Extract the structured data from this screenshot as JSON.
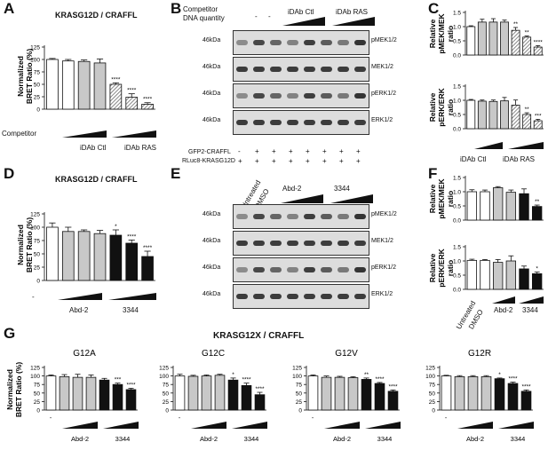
{
  "panels": {
    "A": {
      "letter": "A",
      "title": "KRASG12D / CRAFFL",
      "ylabel": "Normalized BRET Ratio (%)",
      "competitor_label": "Competitor",
      "group_labels": [
        "iDAb Ctl",
        "iDAb RAS"
      ],
      "yticks": [
        "0",
        "25",
        "50",
        "75",
        "100",
        "125"
      ],
      "bars": [
        {
          "value": 100,
          "err": 2,
          "fill": "white"
        },
        {
          "value": 97,
          "err": 3,
          "fill": "white"
        },
        {
          "value": 96,
          "err": 3,
          "fill": "grey"
        },
        {
          "value": 93,
          "err": 8,
          "fill": "grey"
        },
        {
          "value": 50,
          "err": 3,
          "fill": "hatch",
          "sig": "****"
        },
        {
          "value": 24,
          "err": 7,
          "fill": "hatch",
          "sig": "****"
        },
        {
          "value": 10,
          "err": 3,
          "fill": "hatch",
          "sig": "****"
        }
      ]
    },
    "B": {
      "letter": "B",
      "competitor_label": "Competitor",
      "dna_label": "DNA quantity",
      "lane_header": [
        "-",
        "-"
      ],
      "groups": [
        "iDAb Ctl",
        "iDAb RAS"
      ],
      "blots": [
        {
          "kda": "46kDa",
          "label": "pMEK1/2"
        },
        {
          "kda": "46kDa",
          "label": "MEK1/2"
        },
        {
          "kda": "46kDa",
          "label": "pERK1/2"
        },
        {
          "kda": "46kDa",
          "label": "ERK1/2"
        }
      ],
      "row_labels": [
        "GFP2-CRAFFL",
        "RLuc8-KRASG12D"
      ],
      "row_signs": [
        [
          "-",
          "+",
          "+",
          "+",
          "+",
          "+",
          "+",
          "+"
        ],
        [
          "+",
          "+",
          "+",
          "+",
          "+",
          "+",
          "+",
          "+"
        ]
      ]
    },
    "C": {
      "letter": "C",
      "top_ylabel": "Relative pMEK/MEK ratio",
      "bottom_ylabel": "Relative pERK/ERK ratio",
      "yticks": [
        "0.0",
        "0.5",
        "1.0",
        "1.5"
      ],
      "group_labels": [
        "iDAb Ctl",
        "iDAb RAS"
      ],
      "top_bars": [
        {
          "value": 1.0,
          "err": 0.03,
          "fill": "white"
        },
        {
          "value": 1.16,
          "err": 0.1,
          "fill": "grey"
        },
        {
          "value": 1.16,
          "err": 0.12,
          "fill": "grey"
        },
        {
          "value": 1.16,
          "err": 0.07,
          "fill": "grey"
        },
        {
          "value": 0.87,
          "err": 0.1,
          "fill": "hatch",
          "sig": "**"
        },
        {
          "value": 0.63,
          "err": 0.04,
          "fill": "hatch",
          "sig": "**"
        },
        {
          "value": 0.28,
          "err": 0.05,
          "fill": "hatch",
          "sig": "****"
        }
      ],
      "bottom_bars": [
        {
          "value": 1.0,
          "err": 0.03,
          "fill": "white"
        },
        {
          "value": 0.97,
          "err": 0.04,
          "fill": "grey"
        },
        {
          "value": 0.96,
          "err": 0.05,
          "fill": "grey"
        },
        {
          "value": 0.98,
          "err": 0.12,
          "fill": "grey"
        },
        {
          "value": 0.83,
          "err": 0.18,
          "fill": "hatch"
        },
        {
          "value": 0.5,
          "err": 0.06,
          "fill": "hatch",
          "sig": "**"
        },
        {
          "value": 0.28,
          "err": 0.05,
          "fill": "hatch",
          "sig": "***"
        }
      ]
    },
    "D": {
      "letter": "D",
      "title": "KRASG12D / CRAFFL",
      "ylabel": "Normalized BRET Ratio (%)",
      "yticks": [
        "0",
        "25",
        "50",
        "75",
        "100",
        "125"
      ],
      "group_labels": [
        "-",
        "Abd-2",
        "3344"
      ],
      "bars": [
        {
          "value": 100,
          "err": 8,
          "fill": "white"
        },
        {
          "value": 92,
          "err": 8,
          "fill": "grey"
        },
        {
          "value": 92,
          "err": 3,
          "fill": "grey"
        },
        {
          "value": 88,
          "err": 6,
          "fill": "grey"
        },
        {
          "value": 85,
          "err": 10,
          "fill": "black",
          "sig": "*"
        },
        {
          "value": 70,
          "err": 6,
          "fill": "black",
          "sig": "****"
        },
        {
          "value": 45,
          "err": 10,
          "fill": "black",
          "sig": "****"
        }
      ]
    },
    "E": {
      "letter": "E",
      "lane_labels": [
        "Untreated",
        "DMSO"
      ],
      "groups": [
        "Abd-2",
        "3344"
      ],
      "blots": [
        {
          "kda": "46kDa",
          "label": "pMEK1/2"
        },
        {
          "kda": "46kDa",
          "label": "MEK1/2"
        },
        {
          "kda": "46kDa",
          "label": "pERK1/2"
        },
        {
          "kda": "46kDa",
          "label": "ERK1/2"
        }
      ]
    },
    "F": {
      "letter": "F",
      "top_ylabel": "Relative pMEK/MEK ratio",
      "bottom_ylabel": "Relative pERK/ERK ratio",
      "yticks": [
        "0.0",
        "0.5",
        "1.0",
        "1.5"
      ],
      "lane_labels": [
        "Untreated",
        "DMSO"
      ],
      "group_labels": [
        "Abd-2",
        "3344"
      ],
      "top_bars": [
        {
          "value": 1.0,
          "err": 0.07,
          "fill": "white"
        },
        {
          "value": 1.0,
          "err": 0.06,
          "fill": "white"
        },
        {
          "value": 1.14,
          "err": 0.04,
          "fill": "grey"
        },
        {
          "value": 0.98,
          "err": 0.08,
          "fill": "grey"
        },
        {
          "value": 0.93,
          "err": 0.17,
          "fill": "black"
        },
        {
          "value": 0.48,
          "err": 0.05,
          "fill": "black",
          "sig": "**"
        }
      ],
      "bottom_bars": [
        {
          "value": 1.02,
          "err": 0.04,
          "fill": "white"
        },
        {
          "value": 1.02,
          "err": 0.03,
          "fill": "white"
        },
        {
          "value": 0.95,
          "err": 0.1,
          "fill": "grey"
        },
        {
          "value": 1.0,
          "err": 0.18,
          "fill": "grey"
        },
        {
          "value": 0.72,
          "err": 0.1,
          "fill": "black"
        },
        {
          "value": 0.55,
          "err": 0.06,
          "fill": "black",
          "sig": "*"
        }
      ]
    },
    "G": {
      "letter": "G",
      "title": "KRASG12X / CRAFFL",
      "ylabel": "Normalized BRET Ratio (%)",
      "yticks": [
        "0",
        "25",
        "50",
        "75",
        "100",
        "125"
      ],
      "group_labels": [
        "-",
        "Abd-2",
        "3344"
      ],
      "subpanels": [
        {
          "name": "G12A",
          "bars": [
            {
              "value": 100,
              "err": 3,
              "fill": "white"
            },
            {
              "value": 98,
              "err": 6,
              "fill": "grey"
            },
            {
              "value": 96,
              "err": 9,
              "fill": "grey"
            },
            {
              "value": 96,
              "err": 7,
              "fill": "grey"
            },
            {
              "value": 88,
              "err": 5,
              "fill": "black"
            },
            {
              "value": 75,
              "err": 4,
              "fill": "black",
              "sig": "***"
            },
            {
              "value": 60,
              "err": 4,
              "fill": "black",
              "sig": "****"
            }
          ]
        },
        {
          "name": "G12C",
          "bars": [
            {
              "value": 100,
              "err": 5,
              "fill": "white"
            },
            {
              "value": 99,
              "err": 3,
              "fill": "grey"
            },
            {
              "value": 100,
              "err": 3,
              "fill": "grey"
            },
            {
              "value": 102,
              "err": 3,
              "fill": "grey"
            },
            {
              "value": 88,
              "err": 6,
              "fill": "black",
              "sig": "*"
            },
            {
              "value": 72,
              "err": 7,
              "fill": "black",
              "sig": "****"
            },
            {
              "value": 45,
              "err": 7,
              "fill": "black",
              "sig": "****"
            }
          ]
        },
        {
          "name": "G12V",
          "bars": [
            {
              "value": 100,
              "err": 3,
              "fill": "white"
            },
            {
              "value": 96,
              "err": 4,
              "fill": "grey"
            },
            {
              "value": 96,
              "err": 3,
              "fill": "grey"
            },
            {
              "value": 95,
              "err": 3,
              "fill": "grey"
            },
            {
              "value": 90,
              "err": 4,
              "fill": "black",
              "sig": "**"
            },
            {
              "value": 78,
              "err": 3,
              "fill": "black",
              "sig": "****"
            },
            {
              "value": 55,
              "err": 4,
              "fill": "black",
              "sig": "****"
            }
          ]
        },
        {
          "name": "G12R",
          "bars": [
            {
              "value": 100,
              "err": 2,
              "fill": "white"
            },
            {
              "value": 98,
              "err": 3,
              "fill": "grey"
            },
            {
              "value": 98,
              "err": 3,
              "fill": "grey"
            },
            {
              "value": 98,
              "err": 3,
              "fill": "grey"
            },
            {
              "value": 92,
              "err": 2,
              "fill": "black",
              "sig": "*"
            },
            {
              "value": 78,
              "err": 4,
              "fill": "black",
              "sig": "****"
            },
            {
              "value": 55,
              "err": 4,
              "fill": "black",
              "sig": "****"
            }
          ]
        }
      ]
    }
  },
  "colors": {
    "grey": "#c8c8c8",
    "black": "#111111",
    "white": "#ffffff",
    "hatch": "#6a6a6a"
  },
  "chart_data": [
    {
      "type": "bar",
      "panel": "A",
      "title": "KRASG12D / CRAFFL",
      "ylabel": "Normalized BRET Ratio (%)",
      "ylim": [
        0,
        125
      ],
      "values": [
        100,
        97,
        96,
        93,
        50,
        24,
        10
      ],
      "errors": [
        2,
        3,
        3,
        8,
        3,
        7,
        3
      ]
    },
    {
      "type": "bar",
      "panel": "C-top",
      "ylabel": "Relative pMEK/MEK ratio",
      "ylim": [
        0,
        1.5
      ],
      "values": [
        1.0,
        1.16,
        1.16,
        1.16,
        0.87,
        0.63,
        0.28
      ]
    },
    {
      "type": "bar",
      "panel": "C-bottom",
      "ylabel": "Relative pERK/ERK ratio",
      "ylim": [
        0,
        1.5
      ],
      "values": [
        1.0,
        0.97,
        0.96,
        0.98,
        0.83,
        0.5,
        0.28
      ]
    },
    {
      "type": "bar",
      "panel": "D",
      "title": "KRASG12D / CRAFFL",
      "ylabel": "Normalized BRET Ratio (%)",
      "ylim": [
        0,
        125
      ],
      "values": [
        100,
        92,
        92,
        88,
        85,
        70,
        45
      ]
    },
    {
      "type": "bar",
      "panel": "F-top",
      "ylabel": "Relative pMEK/MEK ratio",
      "ylim": [
        0,
        1.5
      ],
      "values": [
        1.0,
        1.0,
        1.14,
        0.98,
        0.93,
        0.48
      ]
    },
    {
      "type": "bar",
      "panel": "F-bottom",
      "ylabel": "Relative pERK/ERK ratio",
      "ylim": [
        0,
        1.5
      ],
      "values": [
        1.02,
        1.02,
        0.95,
        1.0,
        0.72,
        0.55
      ]
    },
    {
      "type": "bar",
      "panel": "G12A",
      "ylabel": "Normalized BRET Ratio (%)",
      "ylim": [
        0,
        125
      ],
      "values": [
        100,
        98,
        96,
        96,
        88,
        75,
        60
      ]
    },
    {
      "type": "bar",
      "panel": "G12C",
      "ylim": [
        0,
        125
      ],
      "values": [
        100,
        99,
        100,
        102,
        88,
        72,
        45
      ]
    },
    {
      "type": "bar",
      "panel": "G12V",
      "ylim": [
        0,
        125
      ],
      "values": [
        100,
        96,
        96,
        95,
        90,
        78,
        55
      ]
    },
    {
      "type": "bar",
      "panel": "G12R",
      "ylim": [
        0,
        125
      ],
      "values": [
        100,
        98,
        98,
        98,
        92,
        78,
        55
      ]
    }
  ]
}
